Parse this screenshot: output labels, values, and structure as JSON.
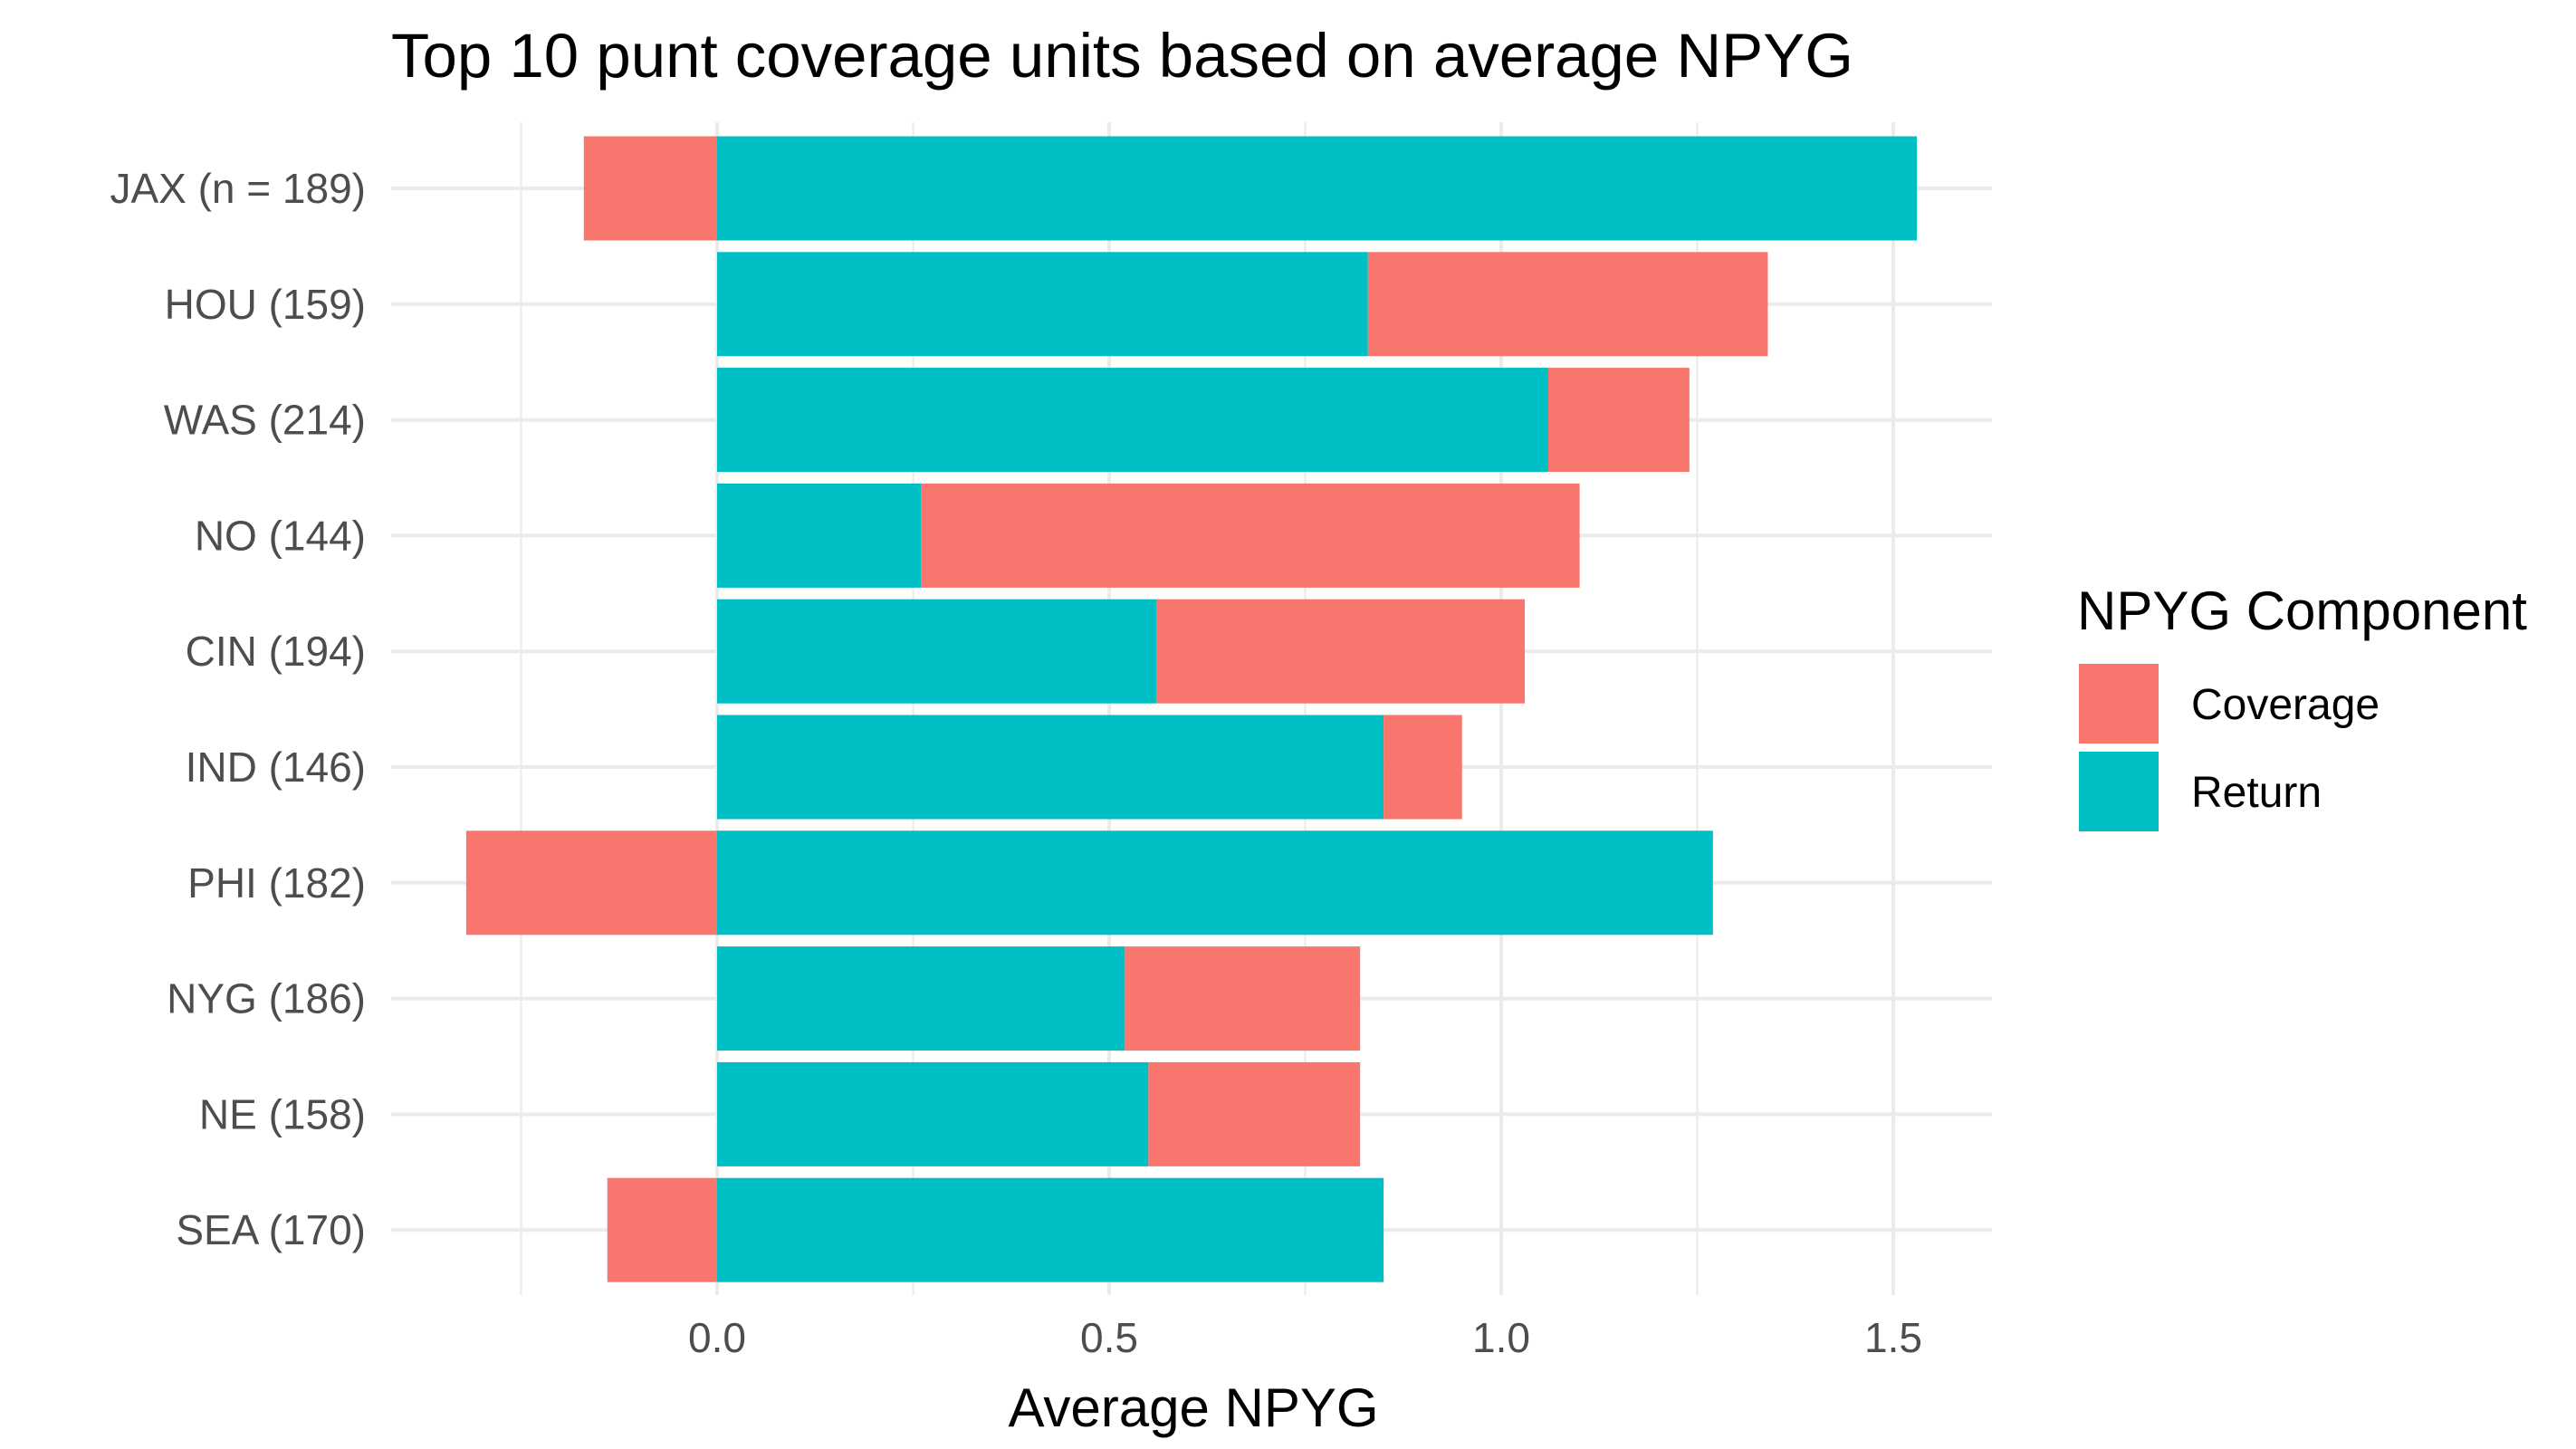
{
  "chart_data": {
    "type": "bar",
    "orientation": "horizontal",
    "stacked": true,
    "title": "Top 10 punt coverage units based on average NPYG",
    "xlabel": "Average NPYG",
    "ylabel": "",
    "xlim": [
      -0.25,
      1.63
    ],
    "x_ticks": [
      0.0,
      0.5,
      1.0,
      1.5
    ],
    "x_tick_labels": [
      "0.0",
      "0.5",
      "1.0",
      "1.5"
    ],
    "categories": [
      "JAX (n = 189)",
      "HOU (159)",
      "WAS (214)",
      "NO (144)",
      "CIN (194)",
      "IND (146)",
      "PHI (182)",
      "NYG (186)",
      "NE (158)",
      "SEA (170)"
    ],
    "series": [
      {
        "name": "Return",
        "color": "#00BFC4",
        "values": [
          1.53,
          0.83,
          1.06,
          0.26,
          0.56,
          0.85,
          1.27,
          0.52,
          0.55,
          0.85
        ]
      },
      {
        "name": "Coverage",
        "color": "#F8766D",
        "values": [
          -0.17,
          0.51,
          0.18,
          0.84,
          0.47,
          0.1,
          -0.32,
          0.3,
          0.27,
          -0.14
        ]
      }
    ],
    "legend": {
      "title": "NPYG Component",
      "position": "right",
      "entries": [
        {
          "label": "Coverage",
          "color": "#F8766D"
        },
        {
          "label": "Return",
          "color": "#00BFC4"
        }
      ]
    },
    "grid": true,
    "grid_color": "#ebebeb",
    "background": "#ffffff"
  }
}
